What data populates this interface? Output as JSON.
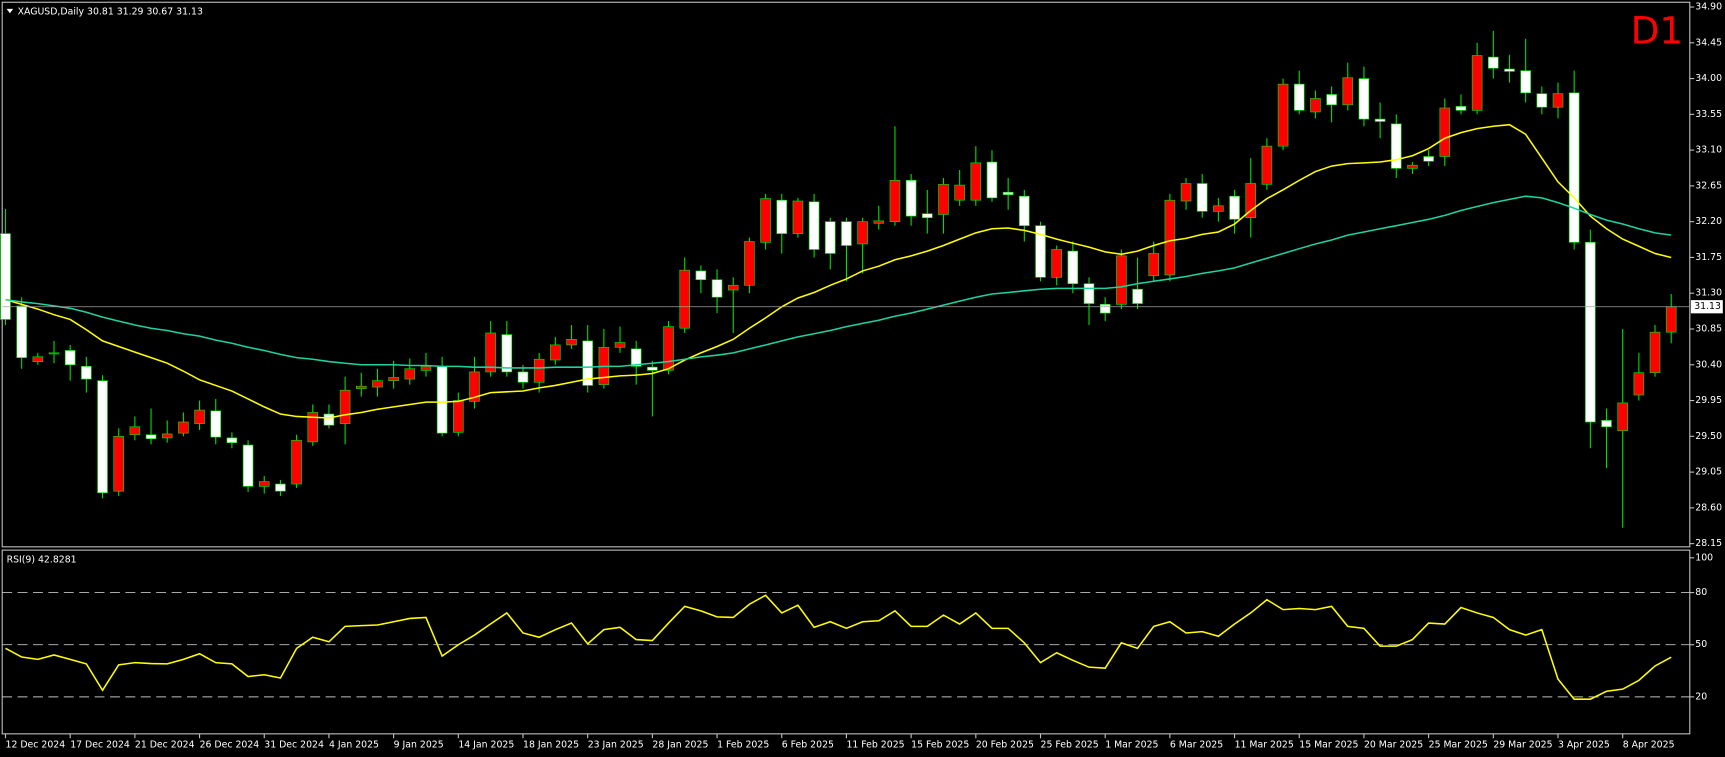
{
  "chart_data": [
    {
      "type": "candlestick",
      "title": "XAGUSD,Daily  30.81 31.29 30.67 31.13",
      "annotation": "D1",
      "up_color": "#ff0000",
      "down_color": "#ffffff",
      "wick_color": "#00e000",
      "ylim": [
        28.11,
        34.96
      ],
      "yticks": [
        {
          "value": 34.9,
          "label": "34.90"
        },
        34.45,
        {
          "value": 34.0,
          "label": "34.00"
        },
        33.55,
        {
          "value": 33.1,
          "label": "33.10"
        },
        32.65,
        {
          "value": 32.2,
          "label": "32.20"
        },
        31.75,
        {
          "value": 31.3,
          "label": "31.30"
        },
        30.85,
        {
          "value": 30.4,
          "label": "30.40"
        },
        29.95,
        {
          "value": 29.5,
          "label": "29.50"
        },
        29.05,
        {
          "value": 28.6,
          "label": "28.60"
        },
        28.15
      ],
      "grid": false,
      "categories": [
        "12 Dec 2024",
        null,
        null,
        null,
        "17 Dec 2024",
        null,
        null,
        null,
        "21 Dec 2024",
        null,
        null,
        null,
        "26 Dec 2024",
        null,
        null,
        null,
        "31 Dec 2024",
        null,
        null,
        null,
        "4 Jan 2025",
        null,
        null,
        null,
        "9 Jan 2025",
        null,
        null,
        null,
        "14 Jan 2025",
        null,
        null,
        null,
        "18 Jan 2025",
        null,
        null,
        null,
        "23 Jan 2025",
        null,
        null,
        null,
        "28 Jan 2025",
        null,
        null,
        null,
        "1 Feb 2025",
        null,
        null,
        null,
        "6 Feb 2025",
        null,
        null,
        null,
        "11 Feb 2025",
        null,
        null,
        null,
        "15 Feb 2025",
        null,
        null,
        null,
        "20 Feb 2025",
        null,
        null,
        null,
        "25 Feb 2025",
        null,
        null,
        null,
        "1 Mar 2025",
        null,
        null,
        null,
        "6 Mar 2025",
        null,
        null,
        null,
        "11 Mar 2025",
        null,
        null,
        null,
        "15 Mar 2025",
        null,
        null,
        null,
        "20 Mar 2025",
        null,
        null,
        null,
        "25 Mar 2025",
        null,
        null,
        null,
        "29 Mar 2025",
        null,
        null,
        null,
        "3 Apr 2025",
        null,
        null,
        null,
        "8 Apr 2025",
        null,
        null,
        null
      ],
      "open": [
        32.05,
        31.14,
        30.44,
        30.54,
        30.58,
        30.38,
        30.2,
        28.81,
        29.52,
        29.52,
        29.48,
        29.54,
        29.66,
        29.82,
        29.48,
        29.39,
        28.87,
        28.9,
        28.9,
        29.43,
        29.78,
        29.66,
        30.1,
        30.12,
        30.2,
        30.22,
        30.33,
        30.38,
        29.55,
        29.94,
        30.31,
        30.78,
        30.31,
        30.18,
        30.46,
        30.65,
        30.7,
        30.15,
        30.62,
        30.6,
        30.37,
        30.33,
        30.86,
        31.58,
        31.47,
        31.34,
        31.4,
        31.94,
        32.47,
        32.05,
        32.45,
        32.2,
        32.2,
        31.92,
        32.18,
        32.2,
        32.72,
        32.3,
        32.29,
        32.47,
        32.47,
        32.95,
        32.57,
        32.52,
        32.15,
        31.5,
        31.83,
        31.42,
        31.16,
        31.16,
        31.35,
        31.52,
        31.53,
        32.46,
        32.68,
        32.33,
        32.52,
        32.25,
        32.67,
        33.15,
        33.93,
        33.58,
        33.8,
        33.67,
        34.0,
        33.49,
        33.43,
        32.87,
        33.02,
        33.02,
        33.65,
        33.6,
        34.27,
        34.12,
        34.1,
        33.81,
        33.64,
        33.82,
        31.94,
        29.7,
        29.57,
        30.02,
        30.3,
        30.81
      ],
      "high": [
        32.36,
        31.25,
        30.55,
        30.7,
        30.65,
        30.5,
        30.27,
        29.6,
        29.75,
        29.85,
        29.7,
        29.8,
        29.95,
        29.97,
        29.55,
        29.45,
        29.0,
        28.95,
        29.52,
        29.9,
        29.9,
        30.25,
        30.3,
        30.35,
        30.45,
        30.48,
        30.55,
        30.5,
        30.05,
        30.5,
        30.95,
        30.95,
        30.4,
        30.55,
        30.75,
        30.9,
        30.9,
        30.85,
        30.88,
        30.7,
        30.45,
        30.95,
        31.75,
        31.65,
        31.6,
        31.5,
        32.0,
        32.55,
        32.55,
        32.5,
        32.55,
        32.25,
        32.25,
        32.25,
        32.4,
        33.4,
        32.8,
        32.6,
        32.75,
        32.85,
        33.15,
        33.1,
        32.75,
        32.6,
        32.2,
        31.9,
        31.95,
        31.5,
        31.25,
        31.85,
        31.75,
        31.95,
        32.55,
        32.75,
        32.8,
        32.5,
        32.6,
        33.0,
        33.25,
        34.0,
        34.1,
        33.85,
        33.9,
        34.2,
        34.15,
        33.7,
        33.55,
        32.95,
        33.1,
        33.75,
        33.8,
        34.45,
        34.6,
        34.3,
        34.5,
        33.9,
        33.95,
        34.1,
        32.1,
        29.85,
        30.85,
        30.55,
        30.9,
        31.29
      ],
      "low": [
        30.9,
        30.35,
        30.4,
        30.42,
        30.2,
        30.05,
        28.72,
        28.75,
        29.45,
        29.4,
        29.42,
        29.5,
        29.58,
        29.4,
        29.35,
        28.8,
        28.78,
        28.75,
        28.85,
        29.38,
        29.6,
        29.4,
        30.0,
        30.0,
        30.1,
        30.15,
        30.25,
        29.5,
        29.5,
        29.85,
        30.25,
        30.25,
        30.1,
        30.05,
        30.4,
        30.6,
        30.05,
        30.1,
        30.55,
        30.15,
        29.75,
        30.28,
        30.8,
        31.3,
        31.05,
        30.8,
        31.3,
        31.85,
        31.8,
        32.0,
        31.75,
        31.6,
        31.45,
        31.55,
        32.1,
        32.15,
        32.15,
        32.05,
        32.05,
        32.4,
        32.4,
        32.45,
        32.35,
        31.95,
        31.45,
        31.4,
        31.3,
        30.9,
        30.95,
        31.1,
        31.1,
        31.45,
        31.45,
        32.35,
        32.25,
        32.2,
        32.05,
        32.0,
        32.6,
        33.1,
        33.55,
        33.5,
        33.45,
        33.6,
        33.4,
        33.25,
        32.75,
        32.8,
        32.9,
        32.9,
        33.55,
        33.55,
        34.0,
        33.95,
        33.7,
        33.55,
        33.5,
        31.85,
        29.35,
        29.1,
        28.35,
        29.95,
        30.25,
        30.67
      ],
      "close": [
        30.97,
        30.49,
        30.5,
        30.55,
        30.4,
        30.22,
        28.79,
        29.5,
        29.62,
        29.47,
        29.53,
        29.68,
        29.83,
        29.49,
        29.42,
        28.87,
        28.93,
        28.81,
        29.45,
        29.8,
        29.64,
        30.08,
        30.13,
        30.2,
        30.24,
        30.35,
        30.38,
        29.54,
        29.95,
        30.31,
        30.8,
        30.31,
        30.18,
        30.47,
        30.65,
        30.72,
        30.14,
        30.62,
        30.68,
        30.38,
        30.33,
        30.88,
        31.59,
        31.47,
        31.25,
        31.4,
        31.95,
        32.49,
        32.05,
        32.46,
        31.85,
        31.8,
        31.9,
        32.2,
        32.21,
        32.72,
        32.27,
        32.25,
        32.67,
        32.66,
        32.94,
        32.5,
        32.54,
        32.15,
        31.5,
        31.85,
        31.42,
        31.17,
        31.05,
        31.77,
        31.17,
        31.8,
        32.47,
        32.68,
        32.33,
        32.4,
        32.23,
        32.68,
        33.15,
        33.93,
        33.6,
        33.75,
        33.67,
        34.01,
        33.49,
        33.46,
        32.87,
        32.91,
        32.96,
        33.63,
        33.6,
        34.29,
        34.13,
        34.09,
        33.82,
        33.64,
        33.81,
        31.94,
        29.68,
        29.62,
        29.92,
        30.3,
        30.81,
        31.13
      ],
      "series": [
        {
          "color": "#ffff00",
          "values": [
            31.22,
            31.16,
            31.1,
            31.03,
            30.97,
            30.84,
            30.7,
            30.63,
            30.56,
            30.49,
            30.42,
            30.32,
            30.21,
            30.14,
            30.07,
            29.97,
            29.87,
            29.78,
            29.75,
            29.74,
            29.73,
            29.77,
            29.8,
            29.84,
            29.87,
            29.9,
            29.93,
            29.93,
            29.94,
            29.99,
            30.05,
            30.06,
            30.07,
            30.11,
            30.14,
            30.18,
            30.22,
            30.24,
            30.26,
            30.27,
            30.29,
            30.35,
            30.46,
            30.55,
            30.63,
            30.72,
            30.86,
            30.99,
            31.13,
            31.24,
            31.31,
            31.4,
            31.48,
            31.58,
            31.64,
            31.72,
            31.77,
            31.83,
            31.9,
            31.98,
            32.06,
            32.11,
            32.12,
            32.09,
            32.04,
            31.98,
            31.93,
            31.88,
            31.82,
            31.79,
            31.83,
            31.9,
            31.96,
            31.99,
            32.04,
            32.07,
            32.17,
            32.34,
            32.49,
            32.6,
            32.72,
            32.83,
            32.9,
            32.93,
            32.94,
            32.95,
            32.98,
            33.03,
            33.12,
            33.25,
            33.32,
            33.37,
            33.4,
            33.42,
            33.3,
            33.0,
            32.7,
            32.5,
            32.27,
            32.11,
            31.98,
            31.89,
            31.8,
            31.75
          ]
        },
        {
          "color": "#20d0a0",
          "values": [
            31.22,
            31.19,
            31.17,
            31.14,
            31.11,
            31.06,
            31.0,
            30.95,
            30.9,
            30.86,
            30.83,
            30.79,
            30.76,
            30.71,
            30.67,
            30.62,
            30.58,
            30.53,
            30.49,
            30.47,
            30.44,
            30.42,
            30.4,
            30.4,
            30.4,
            30.39,
            30.39,
            30.38,
            30.38,
            30.37,
            30.37,
            30.36,
            30.36,
            30.36,
            30.37,
            30.37,
            30.37,
            30.38,
            30.38,
            30.4,
            30.42,
            30.44,
            30.47,
            30.5,
            30.52,
            30.55,
            30.6,
            30.65,
            30.7,
            30.75,
            30.79,
            30.83,
            30.88,
            30.92,
            30.96,
            31.01,
            31.05,
            31.1,
            31.15,
            31.2,
            31.25,
            31.29,
            31.31,
            31.33,
            31.35,
            31.36,
            31.36,
            31.36,
            31.36,
            31.38,
            31.42,
            31.45,
            31.48,
            31.51,
            31.55,
            31.58,
            31.62,
            31.68,
            31.74,
            31.8,
            31.86,
            31.92,
            31.97,
            32.03,
            32.07,
            32.11,
            32.15,
            32.19,
            32.23,
            32.28,
            32.34,
            32.39,
            32.44,
            32.48,
            32.52,
            32.5,
            32.44,
            32.37,
            32.29,
            32.22,
            32.17,
            32.11,
            32.06,
            32.03
          ]
        }
      ]
    },
    {
      "type": "line",
      "title": "RSI(9) 42.8281",
      "ylim": [
        0,
        100
      ],
      "yticks": [
        100,
        80,
        50,
        20
      ],
      "grid": "dashed",
      "series": [
        {
          "color": "#ffff00",
          "values": [
            47.9,
            42.9,
            41.6,
            44.1,
            41.6,
            39.0,
            23.8,
            38.4,
            39.7,
            39.2,
            39.0,
            41.6,
            44.8,
            39.7,
            39.0,
            31.7,
            32.7,
            30.8,
            47.9,
            54.3,
            51.7,
            60.6,
            61.0,
            61.3,
            63.2,
            65.1,
            65.7,
            43.5,
            50.0,
            55.6,
            62.0,
            68.3,
            56.8,
            54.3,
            58.7,
            62.5,
            50.5,
            58.7,
            60.0,
            53.0,
            52.4,
            62.5,
            72.1,
            69.5,
            66.0,
            65.7,
            73.3,
            78.4,
            68.3,
            72.7,
            60.0,
            63.2,
            59.4,
            63.2,
            63.8,
            69.5,
            60.6,
            60.6,
            67.0,
            61.9,
            68.3,
            59.4,
            59.4,
            51.1,
            39.7,
            45.4,
            41.0,
            37.1,
            36.5,
            51.1,
            47.9,
            60.6,
            63.2,
            56.8,
            57.5,
            54.9,
            61.9,
            68.3,
            75.9,
            70.2,
            70.8,
            70.2,
            72.1,
            60.6,
            59.4,
            49.2,
            49.2,
            53.0,
            62.5,
            61.9,
            71.4,
            68.3,
            65.7,
            58.7,
            55.6,
            58.7,
            30.2,
            18.7,
            18.7,
            23.2,
            24.4,
            29.5,
            37.8,
            42.8281
          ]
        }
      ]
    }
  ]
}
